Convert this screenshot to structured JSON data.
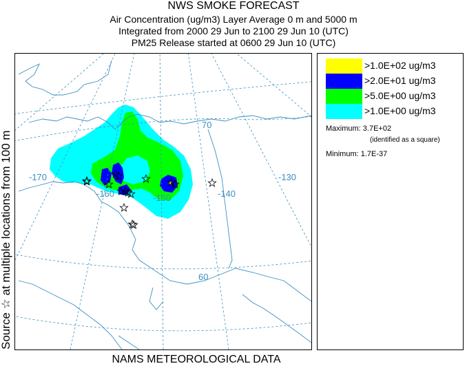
{
  "title": {
    "line1": "NWS SMOKE FORECAST",
    "line2": "Air Concentration (ug/m3) Layer Average    0 m and  5000 m",
    "line3": "Integrated from 2000 29 Jun to 2100 29 Jun 10 (UTC)",
    "line4": "PM25 Release started at 0600 29 Jun 10 (UTC)"
  },
  "side_label": "Source ☆  at multiple locations   from   100 m",
  "bottom_label": "NAMS METEOROLOGICAL DATA",
  "legend": {
    "items": [
      {
        "label": ">1.0E+02 ug/m3",
        "color": "#ffff00"
      },
      {
        "label": ">2.0E+01 ug/m3",
        "color": "#0000ff"
      },
      {
        "label": ">5.0E+00 ug/m3",
        "color": "#00ff00"
      },
      {
        "label": ">1.0E+00 ug/m3",
        "color": "#00ffff"
      }
    ],
    "maximum_label": "Maximum:",
    "maximum_value": "3.7E+02",
    "maximum_note": "(identified as a square)",
    "minimum_label": "Minimum:",
    "minimum_value": "1.7E-37"
  },
  "map": {
    "grid_labels": {
      "lon_170": "-170",
      "lon_160": "-160",
      "lon_150": "-150",
      "lon_140": "-140",
      "lon_130": "-130",
      "lat_70": "70",
      "lat_60": "60"
    },
    "colors": {
      "graticule": "#3a8fc0",
      "coast": "#3a8fc0",
      "source_star": "#000000"
    }
  }
}
